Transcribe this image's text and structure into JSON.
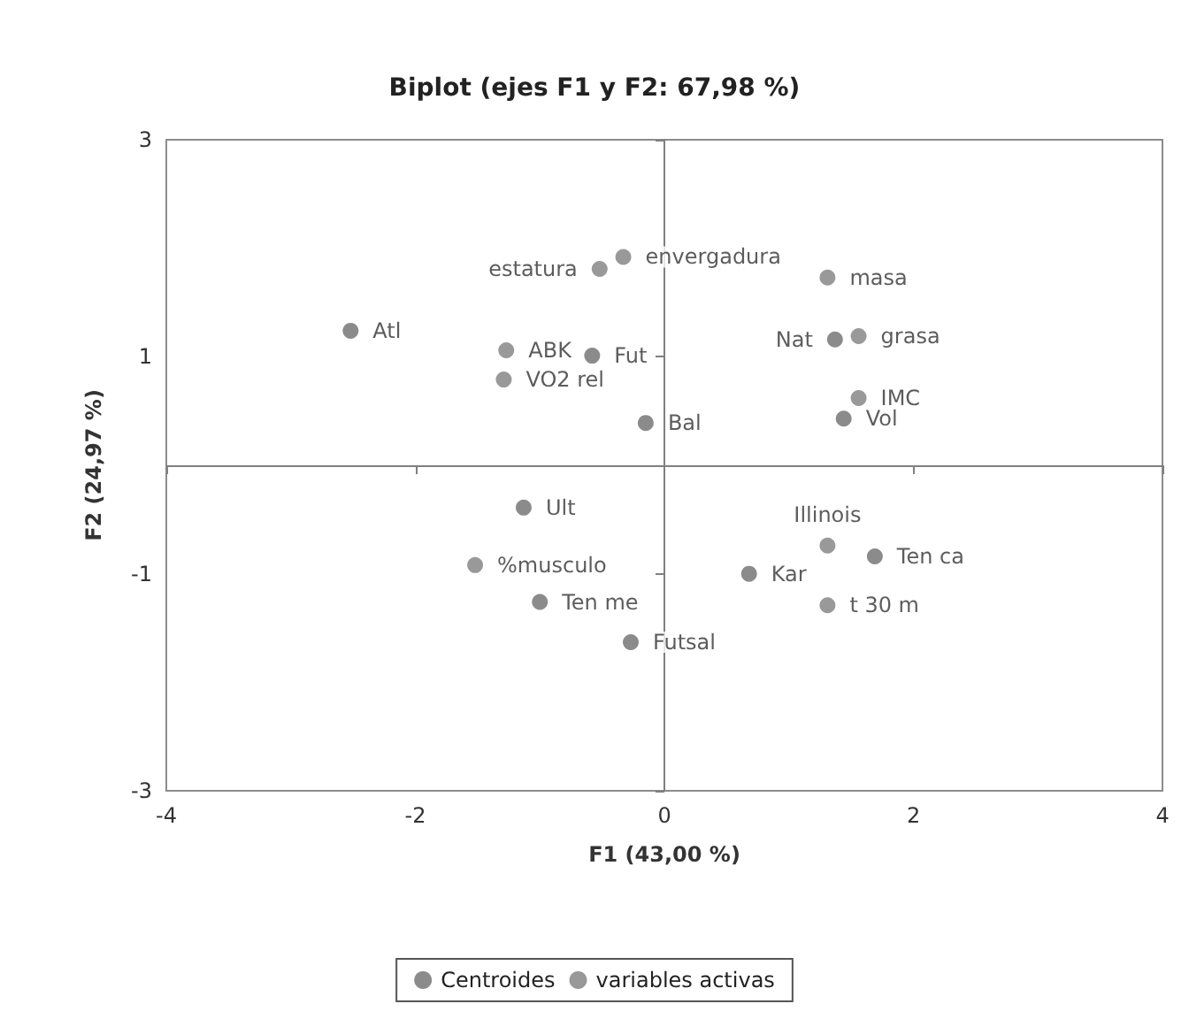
{
  "chart_data": {
    "type": "scatter",
    "title": "Biplot (ejes F1 y F2: 67,98 %)",
    "xlabel": "F1 (43,00 %)",
    "ylabel": "F2 (24,97 %)",
    "xlim": [
      -4,
      4
    ],
    "xticks": [
      -4,
      -2,
      0,
      2,
      4
    ],
    "ylim": [
      -3,
      3
    ],
    "yticks": [
      -3,
      -1,
      1,
      3
    ],
    "legend": "bottom",
    "marker": "circle",
    "series": [
      {
        "name": "Centroides",
        "color": "#6e6e6e",
        "x": [
          -2.52,
          -0.58,
          -0.15,
          1.37,
          1.44,
          -1.13,
          -1.0,
          -0.27,
          0.68,
          1.69
        ],
        "values": [
          1.24,
          1.01,
          0.39,
          1.16,
          0.43,
          -0.39,
          -1.26,
          -1.63,
          -1.0,
          -0.84
        ],
        "value_labels": [
          "Atl",
          "Fut",
          "Bal",
          "Nat",
          "Vol",
          "Ult",
          "Ten me",
          "Futsal",
          "Kar",
          "Ten ca"
        ]
      },
      {
        "name": "variables activas",
        "color": "#808080",
        "x": [
          -0.33,
          -0.52,
          1.31,
          1.56,
          1.56,
          -1.27,
          -1.29,
          -1.52,
          1.31,
          1.31
        ],
        "values": [
          1.92,
          1.81,
          1.73,
          1.19,
          0.62,
          1.06,
          0.79,
          -0.92,
          -0.74,
          -1.29
        ],
        "value_labels": [
          "envergadura",
          "estatura",
          "masa",
          "grasa",
          "IMC",
          "ABK",
          "VO2 rel",
          "%musculo",
          "Illinois",
          "t 30 m"
        ]
      }
    ]
  }
}
